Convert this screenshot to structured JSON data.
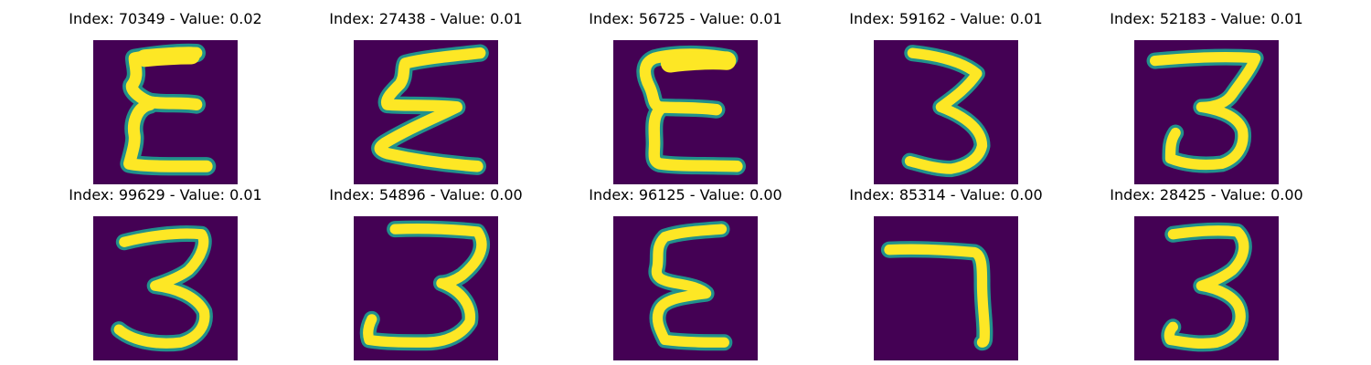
{
  "figure": {
    "background_color": "#440154",
    "stroke_color_core": "#fde725",
    "stroke_color_edge": "#21918c",
    "panels": [
      {
        "title": "Index: 70349 - Value: 0.02",
        "image": "digit-image",
        "depicts": "handwritten-epsilon-like-3"
      },
      {
        "title": "Index: 27438 - Value: 0.01",
        "image": "digit-image",
        "depicts": "handwritten-sigma-like-3"
      },
      {
        "title": "Index: 56725 - Value: 0.01",
        "image": "digit-image",
        "depicts": "handwritten-epsilon-like-3"
      },
      {
        "title": "Index: 59162 - Value: 0.01",
        "image": "digit-image",
        "depicts": "handwritten-3"
      },
      {
        "title": "Index: 52183 - Value: 0.01",
        "image": "digit-image",
        "depicts": "handwritten-3"
      },
      {
        "title": "Index: 99629 - Value: 0.01",
        "image": "digit-image",
        "depicts": "handwritten-3"
      },
      {
        "title": "Index: 54896 - Value: 0.00",
        "image": "digit-image",
        "depicts": "handwritten-3"
      },
      {
        "title": "Index: 96125 - Value: 0.00",
        "image": "digit-image",
        "depicts": "handwritten-epsilon-like-3"
      },
      {
        "title": "Index: 85314 - Value: 0.00",
        "image": "digit-image",
        "depicts": "handwritten-7"
      },
      {
        "title": "Index: 28425 - Value: 0.00",
        "image": "digit-image",
        "depicts": "handwritten-3"
      }
    ]
  }
}
